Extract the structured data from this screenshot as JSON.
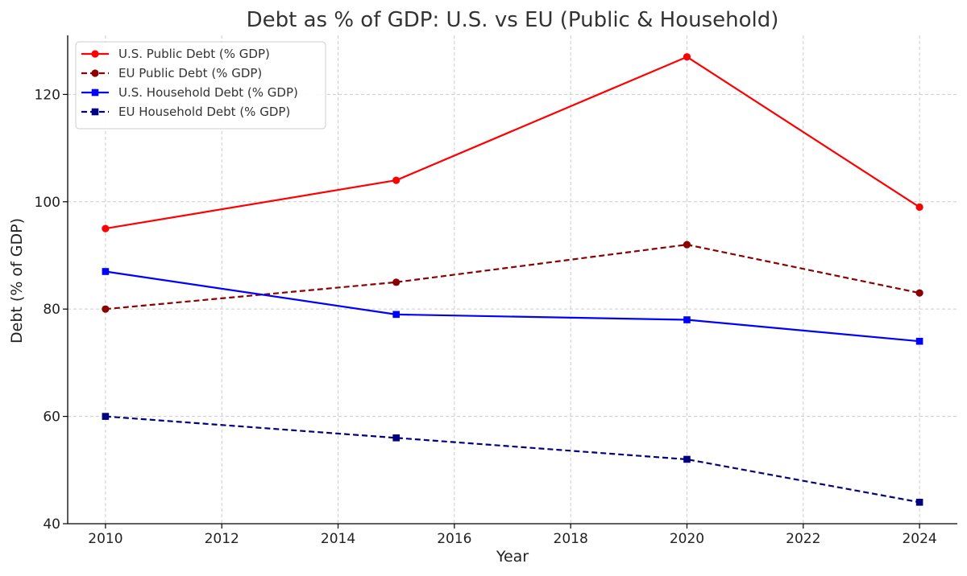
{
  "chart_data": {
    "type": "line",
    "title": "Debt as % of GDP: U.S. vs EU (Public & Household)",
    "xlabel": "Year",
    "ylabel": "Debt (% of GDP)",
    "xlim": [
      2009.35,
      2024.65
    ],
    "ylim": [
      40,
      131
    ],
    "xticks": [
      2010,
      2012,
      2014,
      2016,
      2018,
      2020,
      2022,
      2024
    ],
    "yticks": [
      40,
      60,
      80,
      100,
      120
    ],
    "grid": true,
    "legend_position": "top-left",
    "x": [
      2010,
      2015,
      2020,
      2024
    ],
    "series": [
      {
        "name": "U.S. Public Debt (% GDP)",
        "values": [
          95,
          104,
          127,
          99
        ],
        "color": "#ff0000",
        "line_style": "solid",
        "marker": "circle"
      },
      {
        "name": "EU Public Debt (% GDP)",
        "values": [
          80,
          85,
          92,
          83
        ],
        "color": "#8b0000",
        "line_style": "dashed",
        "marker": "circle"
      },
      {
        "name": "U.S. Household Debt (% GDP)",
        "values": [
          87,
          79,
          78,
          74
        ],
        "color": "#0000ff",
        "line_style": "solid",
        "marker": "square"
      },
      {
        "name": "EU Household Debt (% GDP)",
        "values": [
          60,
          56,
          52,
          44
        ],
        "color": "#000080",
        "line_style": "dashed",
        "marker": "square"
      }
    ]
  }
}
